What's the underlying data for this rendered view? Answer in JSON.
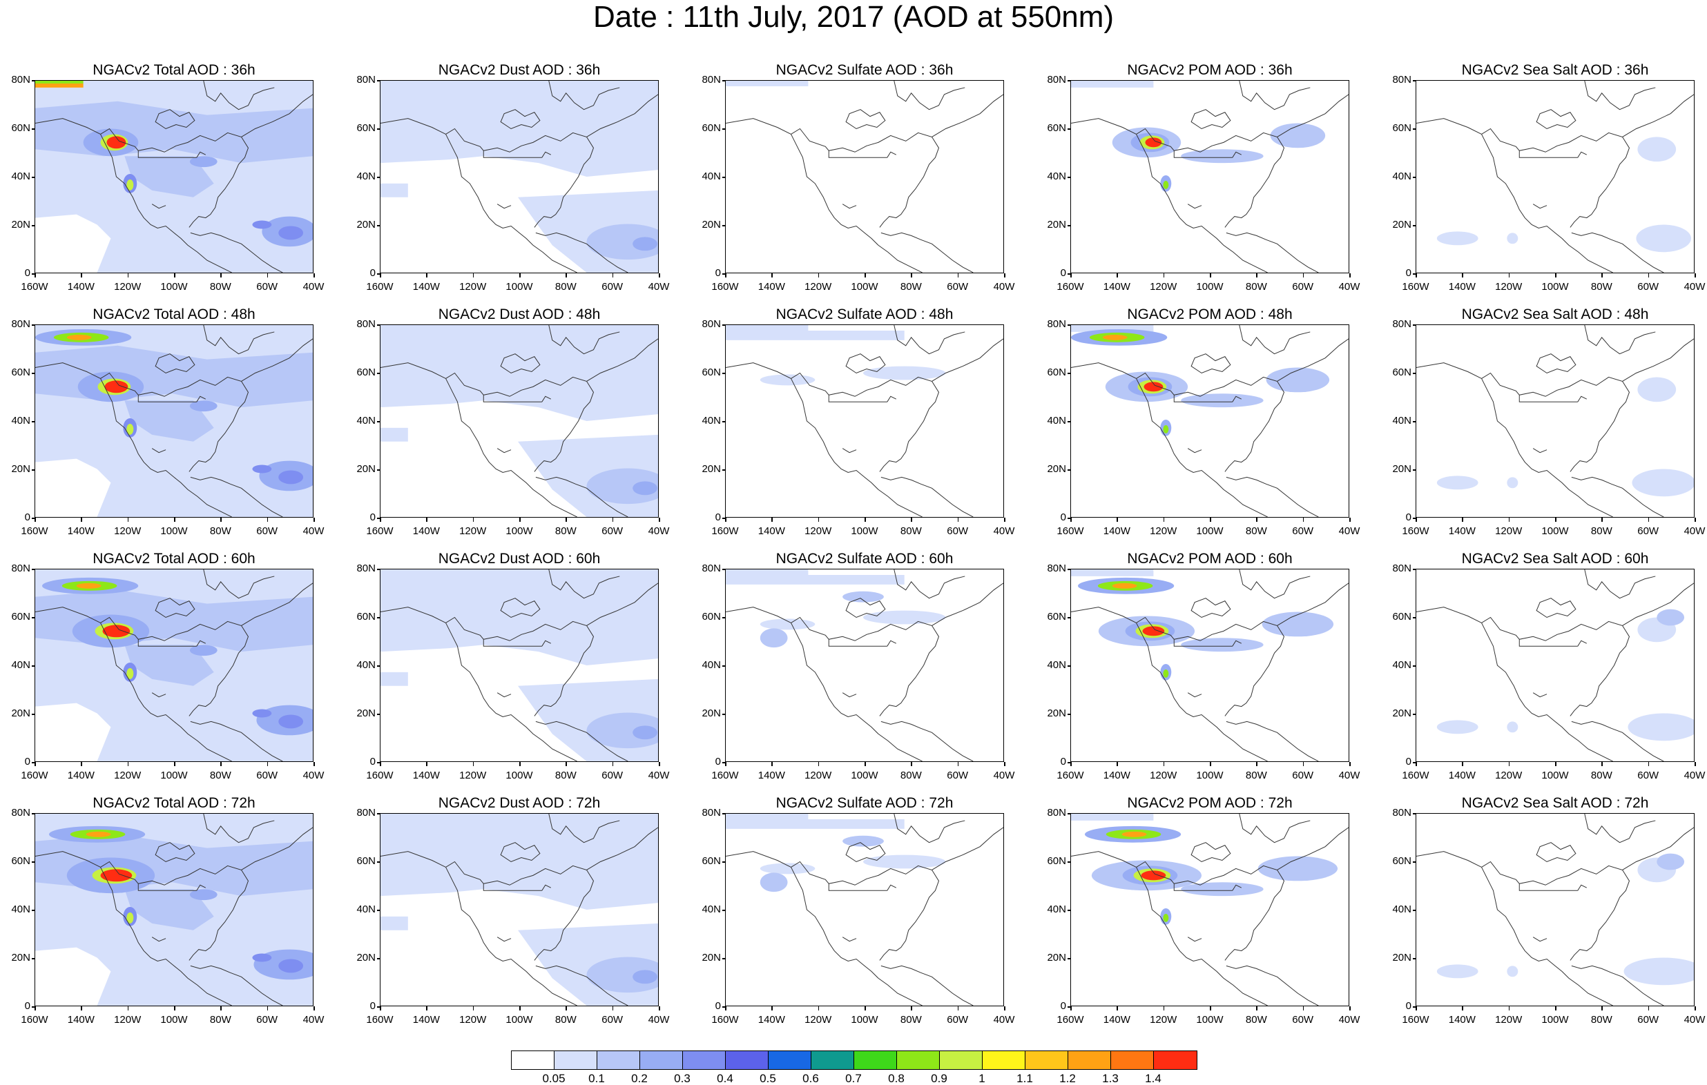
{
  "title": "Date : 11th July, 2017 (AOD at 550nm)",
  "lat_labels": [
    "80N",
    "60N",
    "40N",
    "20N",
    "0"
  ],
  "lon_labels": [
    "160W",
    "140W",
    "120W",
    "100W",
    "80W",
    "60W",
    "40W"
  ],
  "panels": [
    {
      "title": "NGACv2 Total AOD : 36h",
      "species": "total",
      "lead": "36h"
    },
    {
      "title": "NGACv2 Dust AOD : 36h",
      "species": "dust",
      "lead": "36h"
    },
    {
      "title": "NGACv2 Sulfate AOD : 36h",
      "species": "sulfate",
      "lead": "36h"
    },
    {
      "title": "NGACv2 POM AOD : 36h",
      "species": "pom",
      "lead": "36h"
    },
    {
      "title": "NGACv2 Sea Salt AOD : 36h",
      "species": "seasalt",
      "lead": "36h"
    },
    {
      "title": "NGACv2 Total AOD : 48h",
      "species": "total",
      "lead": "48h"
    },
    {
      "title": "NGACv2 Dust AOD : 48h",
      "species": "dust",
      "lead": "48h"
    },
    {
      "title": "NGACv2 Sulfate AOD : 48h",
      "species": "sulfate",
      "lead": "48h"
    },
    {
      "title": "NGACv2 POM AOD : 48h",
      "species": "pom",
      "lead": "48h"
    },
    {
      "title": "NGACv2 Sea Salt AOD : 48h",
      "species": "seasalt",
      "lead": "48h"
    },
    {
      "title": "NGACv2 Total AOD : 60h",
      "species": "total",
      "lead": "60h"
    },
    {
      "title": "NGACv2 Dust AOD : 60h",
      "species": "dust",
      "lead": "60h"
    },
    {
      "title": "NGACv2 Sulfate AOD : 60h",
      "species": "sulfate",
      "lead": "60h"
    },
    {
      "title": "NGACv2 POM AOD : 60h",
      "species": "pom",
      "lead": "60h"
    },
    {
      "title": "NGACv2 Sea Salt AOD : 60h",
      "species": "seasalt",
      "lead": "60h"
    },
    {
      "title": "NGACv2 Total AOD : 72h",
      "species": "total",
      "lead": "72h"
    },
    {
      "title": "NGACv2 Dust AOD : 72h",
      "species": "dust",
      "lead": "72h"
    },
    {
      "title": "NGACv2 Sulfate AOD : 72h",
      "species": "sulfate",
      "lead": "72h"
    },
    {
      "title": "NGACv2 POM AOD : 72h",
      "species": "pom",
      "lead": "72h"
    },
    {
      "title": "NGACv2 Sea Salt  AOD : 72h",
      "species": "seasalt",
      "lead": "72h"
    }
  ],
  "colorbar": {
    "colors": [
      "#ffffff",
      "#d6e0fb",
      "#b7c7f7",
      "#98adf4",
      "#7e8ef1",
      "#5c62ea",
      "#1868e4",
      "#0f9a8f",
      "#3ed81a",
      "#8ee718",
      "#c7f042",
      "#fff51a",
      "#ffc61a",
      "#ffa214",
      "#ff7712",
      "#ff2d12"
    ],
    "labels": [
      "0.05",
      "0.1",
      "0.2",
      "0.3",
      "0.4",
      "0.5",
      "0.6",
      "0.7",
      "0.8",
      "0.9",
      "1",
      "1.1",
      "1.2",
      "1.3",
      "1.4"
    ]
  }
}
